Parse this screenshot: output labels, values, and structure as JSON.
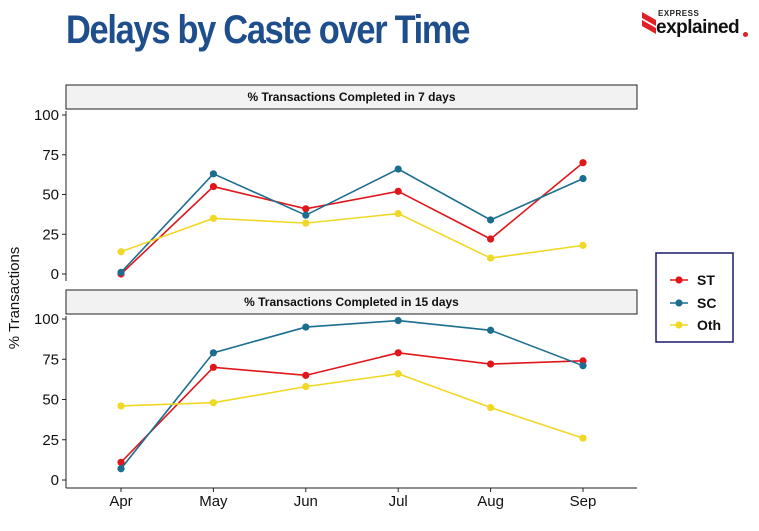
{
  "header": {
    "title": "Delays by Caste over Time",
    "brand_top": "EXPRESS",
    "brand_main": "explained"
  },
  "chart_data": {
    "type": "line",
    "ylabel": "% Transactions",
    "xlabel": "",
    "categories": [
      "Apr",
      "May",
      "Jun",
      "Jul",
      "Aug",
      "Sep"
    ],
    "ylim": [
      0,
      100
    ],
    "yticks": [
      0,
      25,
      50,
      75,
      100
    ],
    "legend_position": "right",
    "colors": {
      "ST": "#e0161b",
      "SC": "#1b6e8f",
      "Oth": "#f0d824"
    },
    "panels": [
      {
        "title": "% Transactions Completed in 7 days",
        "series": [
          {
            "name": "ST",
            "values": [
              0,
              55,
              41,
              52,
              22,
              70
            ]
          },
          {
            "name": "SC",
            "values": [
              1,
              63,
              37,
              66,
              34,
              60
            ]
          },
          {
            "name": "Oth",
            "values": [
              14,
              35,
              32,
              38,
              10,
              18
            ]
          }
        ]
      },
      {
        "title": "% Transactions Completed in 15 days",
        "series": [
          {
            "name": "ST",
            "values": [
              11,
              70,
              65,
              79,
              72,
              74
            ]
          },
          {
            "name": "SC",
            "values": [
              7,
              79,
              95,
              99,
              93,
              71
            ]
          },
          {
            "name": "Oth",
            "values": [
              46,
              48,
              58,
              66,
              45,
              26
            ]
          }
        ]
      }
    ]
  }
}
